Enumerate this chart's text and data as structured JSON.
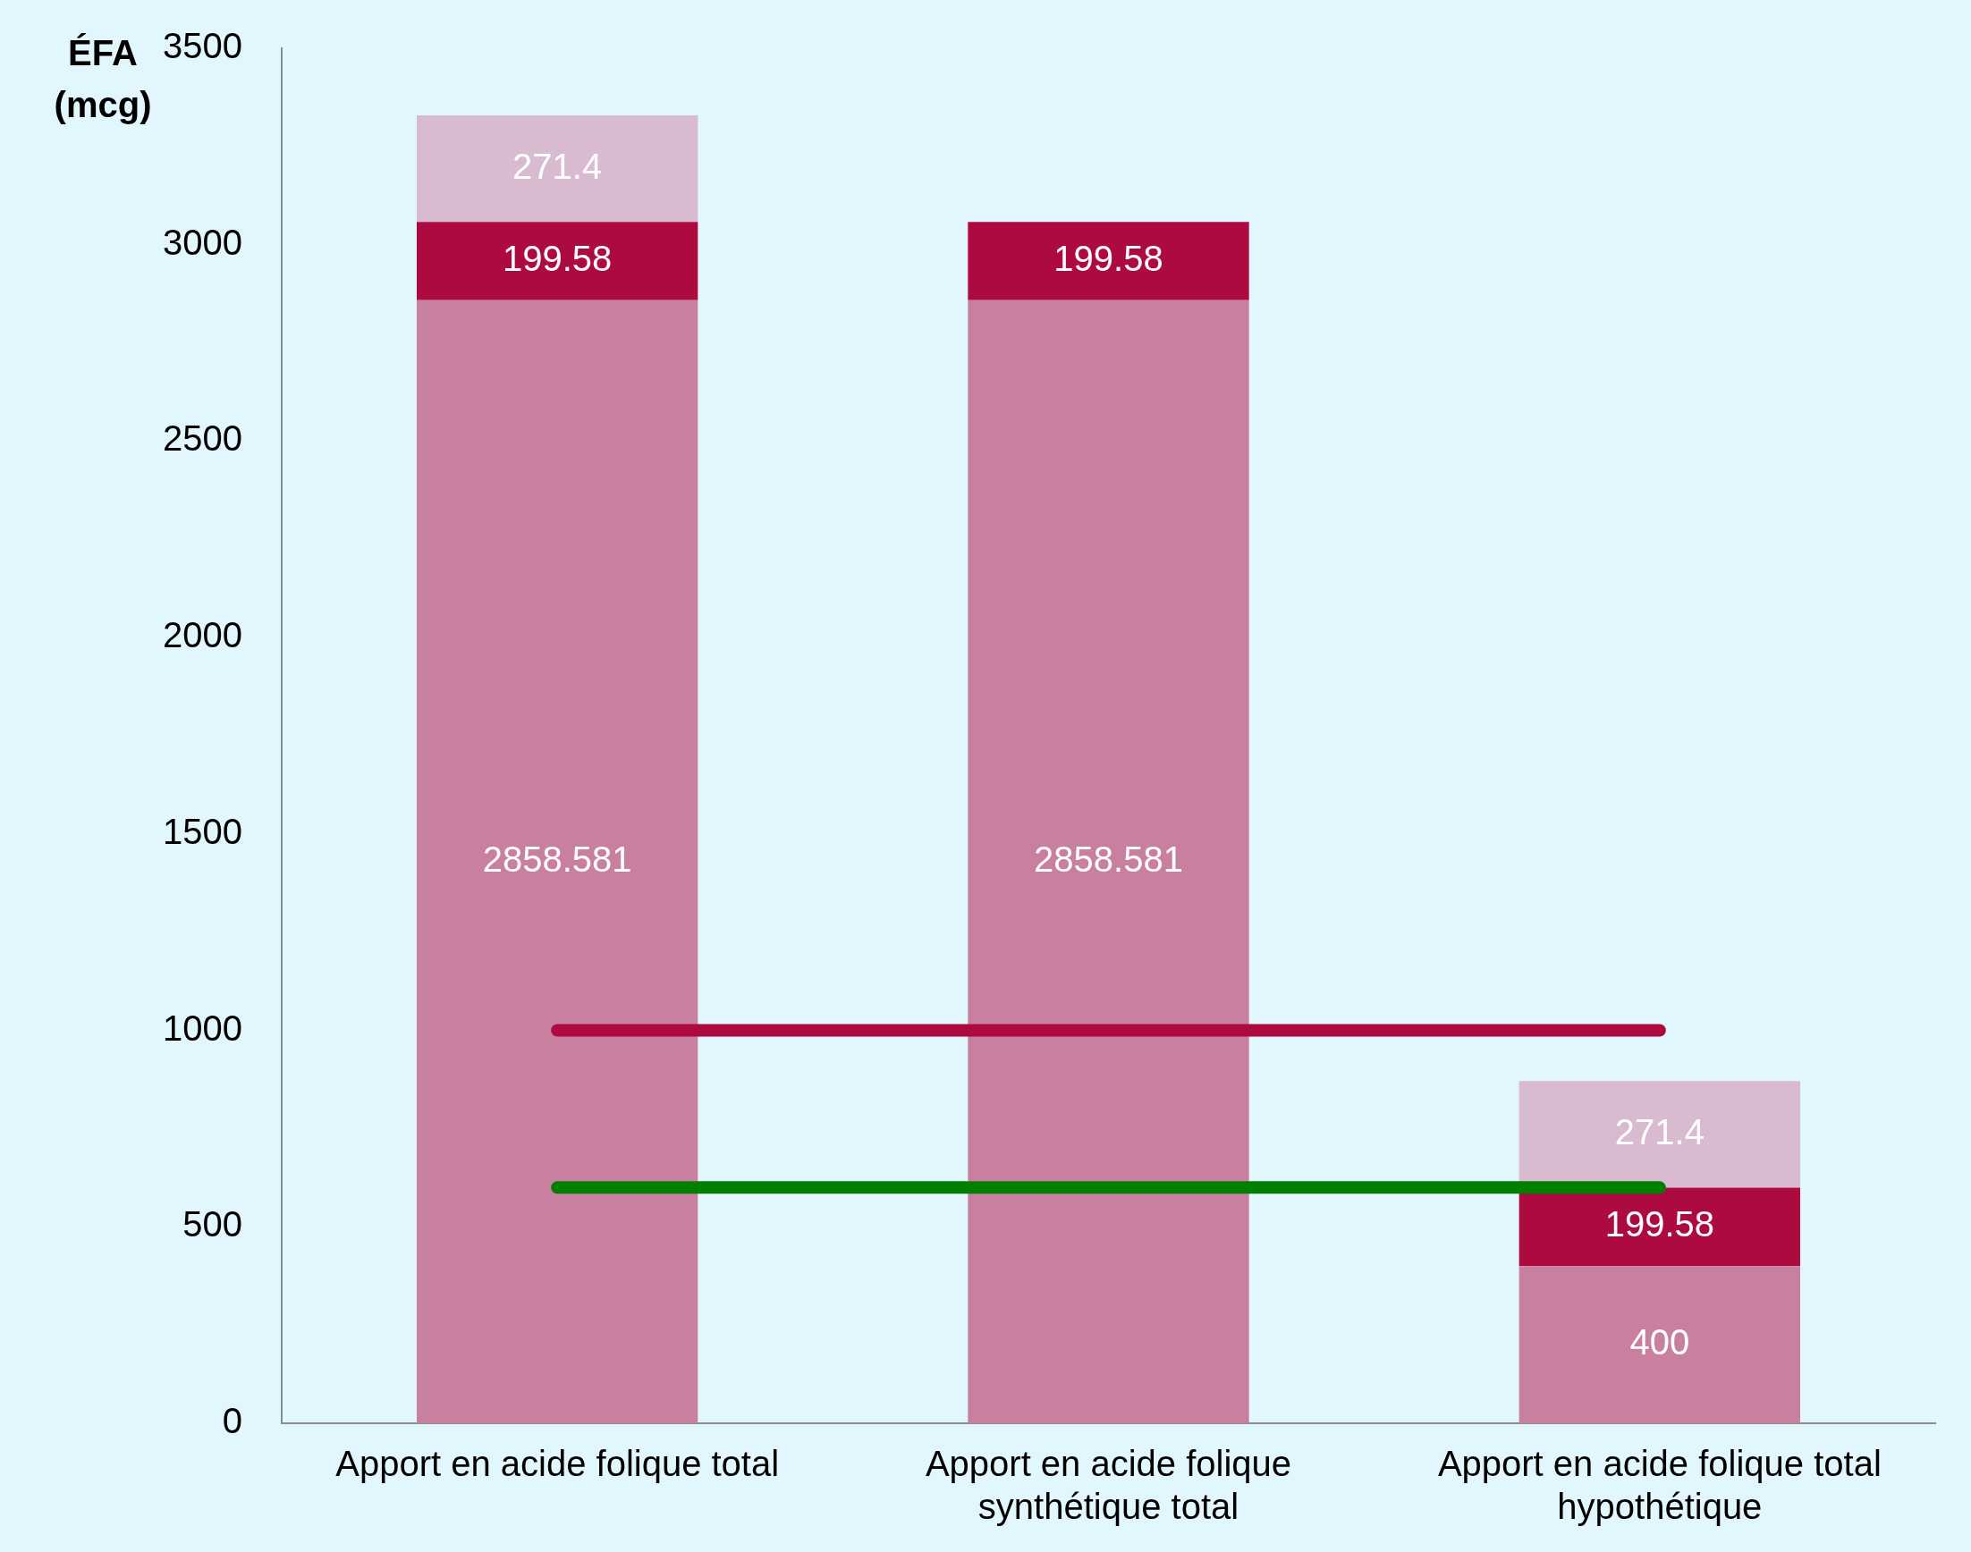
{
  "chart_data": {
    "type": "bar",
    "stacked": true,
    "ylabel": "ÉFA (mcg)",
    "categories": [
      "Apport en acide folique total",
      "Apport en acide folique synthétique total",
      "Apport en acide folique total hypothétique"
    ],
    "series": [
      {
        "color": "#c97f9f",
        "values": [
          2858.581,
          2858.581,
          400
        ]
      },
      {
        "color": "#ad0a40",
        "values": [
          199.58,
          199.58,
          199.58
        ]
      },
      {
        "color": "#d8bbd0",
        "values": [
          271.4,
          null,
          271.4
        ]
      }
    ],
    "ylim": [
      0,
      3500
    ],
    "yticks": [
      0,
      500,
      1000,
      1500,
      2000,
      2500,
      3000,
      3500
    ],
    "grid": false,
    "legend": false,
    "data_labels": true,
    "ref_lines": [
      {
        "axis": "y",
        "value": 1000,
        "color": "#ad0a40"
      },
      {
        "axis": "y",
        "value": 600,
        "color": "#008000"
      }
    ]
  }
}
